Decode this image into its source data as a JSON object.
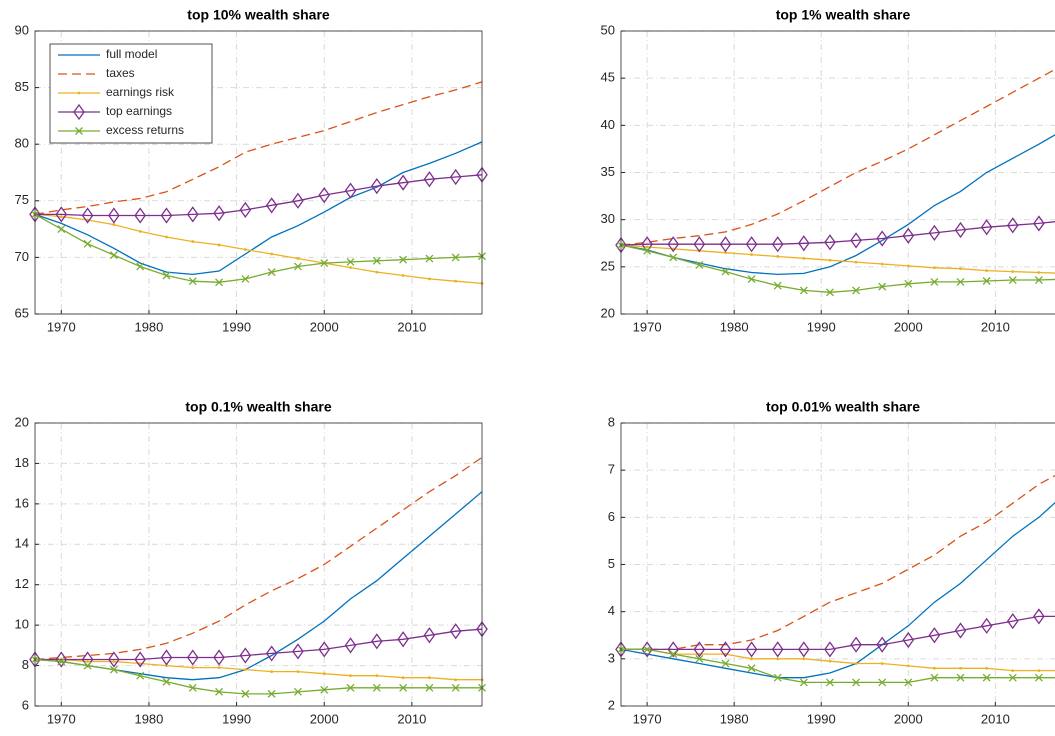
{
  "chart_data": [
    {
      "type": "line",
      "title": "top 10% wealth share",
      "xlim": [
        1967,
        2018
      ],
      "xticks": [
        1970,
        1980,
        1990,
        2000,
        2010
      ],
      "ylim": [
        65,
        90
      ],
      "yticks": [
        65,
        70,
        75,
        80,
        85,
        90
      ],
      "grid": true,
      "legend": "upper left",
      "x": [
        1967,
        1970,
        1973,
        1976,
        1979,
        1982,
        1985,
        1988,
        1991,
        1994,
        1997,
        2000,
        2003,
        2006,
        2009,
        2012,
        2015,
        2018
      ],
      "series": [
        {
          "name": "full model",
          "color": "#0072bd",
          "style": "solid",
          "marker": "none",
          "values": [
            73.8,
            73.0,
            72.0,
            70.8,
            69.5,
            68.7,
            68.5,
            68.8,
            70.3,
            71.8,
            72.8,
            74.0,
            75.3,
            76.2,
            77.5,
            78.3,
            79.2,
            80.2
          ]
        },
        {
          "name": "taxes",
          "color": "#d95319",
          "style": "dashed",
          "marker": "none",
          "values": [
            73.8,
            74.2,
            74.5,
            74.9,
            75.2,
            75.8,
            76.9,
            78.0,
            79.3,
            80.0,
            80.6,
            81.2,
            82.0,
            82.8,
            83.5,
            84.2,
            84.8,
            85.5
          ]
        },
        {
          "name": "earnings risk",
          "color": "#edb120",
          "style": "solid",
          "marker": "dot",
          "values": [
            73.8,
            73.6,
            73.3,
            72.9,
            72.3,
            71.8,
            71.4,
            71.1,
            70.7,
            70.3,
            69.9,
            69.5,
            69.1,
            68.7,
            68.4,
            68.1,
            67.9,
            67.7
          ]
        },
        {
          "name": "top earnings",
          "color": "#7e2f8e",
          "style": "solid",
          "marker": "diamond",
          "values": [
            73.8,
            73.8,
            73.7,
            73.7,
            73.7,
            73.7,
            73.8,
            73.9,
            74.2,
            74.6,
            75.0,
            75.5,
            75.9,
            76.3,
            76.6,
            76.9,
            77.1,
            77.3
          ]
        },
        {
          "name": "excess returns",
          "color": "#77ac30",
          "style": "solid",
          "marker": "x",
          "values": [
            73.8,
            72.5,
            71.2,
            70.2,
            69.2,
            68.4,
            67.9,
            67.8,
            68.1,
            68.7,
            69.2,
            69.5,
            69.6,
            69.7,
            69.8,
            69.9,
            70.0,
            70.1
          ]
        }
      ]
    },
    {
      "type": "line",
      "title": "top 1% wealth share",
      "xlim": [
        1967,
        2018
      ],
      "xticks": [
        1970,
        1980,
        1990,
        2000,
        2010
      ],
      "ylim": [
        20,
        50
      ],
      "yticks": [
        20,
        25,
        30,
        35,
        40,
        45,
        50
      ],
      "grid": true,
      "x": [
        1967,
        1970,
        1973,
        1976,
        1979,
        1982,
        1985,
        1988,
        1991,
        1994,
        1997,
        2000,
        2003,
        2006,
        2009,
        2012,
        2015,
        2018
      ],
      "series": [
        {
          "color": "#0072bd",
          "style": "solid",
          "marker": "none",
          "values": [
            27.3,
            26.8,
            26.0,
            25.4,
            24.8,
            24.4,
            24.2,
            24.3,
            25.0,
            26.2,
            27.8,
            29.5,
            31.5,
            33.0,
            35.0,
            36.5,
            38.0,
            39.6
          ]
        },
        {
          "color": "#d95319",
          "style": "dashed",
          "marker": "none",
          "values": [
            27.3,
            27.6,
            28.0,
            28.3,
            28.7,
            29.5,
            30.6,
            32.0,
            33.5,
            35.0,
            36.2,
            37.5,
            39.0,
            40.5,
            42.0,
            43.5,
            45.0,
            46.5
          ]
        },
        {
          "color": "#edb120",
          "style": "solid",
          "marker": "dot",
          "values": [
            27.3,
            27.1,
            26.9,
            26.7,
            26.5,
            26.3,
            26.1,
            25.9,
            25.7,
            25.5,
            25.3,
            25.1,
            24.9,
            24.8,
            24.6,
            24.5,
            24.4,
            24.3
          ]
        },
        {
          "color": "#7e2f8e",
          "style": "solid",
          "marker": "diamond",
          "values": [
            27.3,
            27.4,
            27.4,
            27.4,
            27.4,
            27.4,
            27.4,
            27.5,
            27.6,
            27.8,
            28.0,
            28.3,
            28.6,
            28.9,
            29.2,
            29.4,
            29.6,
            29.9
          ]
        },
        {
          "color": "#77ac30",
          "style": "solid",
          "marker": "x",
          "values": [
            27.3,
            26.7,
            26.0,
            25.2,
            24.5,
            23.7,
            23.0,
            22.5,
            22.3,
            22.5,
            22.9,
            23.2,
            23.4,
            23.4,
            23.5,
            23.6,
            23.6,
            23.7
          ]
        }
      ]
    },
    {
      "type": "line",
      "title": "top 0.1% wealth share",
      "xlim": [
        1967,
        2018
      ],
      "xticks": [
        1970,
        1980,
        1990,
        2000,
        2010
      ],
      "ylim": [
        6,
        20
      ],
      "yticks": [
        6,
        8,
        10,
        12,
        14,
        16,
        18,
        20
      ],
      "grid": true,
      "x": [
        1967,
        1970,
        1973,
        1976,
        1979,
        1982,
        1985,
        1988,
        1991,
        1994,
        1997,
        2000,
        2003,
        2006,
        2009,
        2012,
        2015,
        2018
      ],
      "series": [
        {
          "color": "#0072bd",
          "style": "solid",
          "marker": "none",
          "values": [
            8.3,
            8.2,
            8.0,
            7.8,
            7.6,
            7.4,
            7.3,
            7.4,
            7.8,
            8.5,
            9.3,
            10.2,
            11.3,
            12.2,
            13.3,
            14.4,
            15.5,
            16.6
          ]
        },
        {
          "color": "#d95319",
          "style": "dashed",
          "marker": "none",
          "values": [
            8.3,
            8.4,
            8.5,
            8.6,
            8.8,
            9.1,
            9.6,
            10.2,
            11.0,
            11.7,
            12.3,
            13.0,
            13.9,
            14.8,
            15.7,
            16.6,
            17.4,
            18.3
          ]
        },
        {
          "color": "#edb120",
          "style": "solid",
          "marker": "dot",
          "values": [
            8.3,
            8.3,
            8.2,
            8.2,
            8.1,
            8.0,
            7.9,
            7.9,
            7.8,
            7.7,
            7.7,
            7.6,
            7.5,
            7.5,
            7.4,
            7.4,
            7.3,
            7.3
          ]
        },
        {
          "color": "#7e2f8e",
          "style": "solid",
          "marker": "diamond",
          "values": [
            8.3,
            8.3,
            8.3,
            8.3,
            8.3,
            8.4,
            8.4,
            8.4,
            8.5,
            8.6,
            8.7,
            8.8,
            9.0,
            9.2,
            9.3,
            9.5,
            9.7,
            9.8
          ]
        },
        {
          "color": "#77ac30",
          "style": "solid",
          "marker": "x",
          "values": [
            8.3,
            8.2,
            8.0,
            7.8,
            7.5,
            7.2,
            6.9,
            6.7,
            6.6,
            6.6,
            6.7,
            6.8,
            6.9,
            6.9,
            6.9,
            6.9,
            6.9,
            6.9
          ]
        }
      ]
    },
    {
      "type": "line",
      "title": "top 0.01% wealth share",
      "xlim": [
        1967,
        2018
      ],
      "xticks": [
        1970,
        1980,
        1990,
        2000,
        2010
      ],
      "ylim": [
        2,
        8
      ],
      "yticks": [
        2,
        3,
        4,
        5,
        6,
        7,
        8
      ],
      "grid": true,
      "x": [
        1967,
        1970,
        1973,
        1976,
        1979,
        1982,
        1985,
        1988,
        1991,
        1994,
        1997,
        2000,
        2003,
        2006,
        2009,
        2012,
        2015,
        2018
      ],
      "series": [
        {
          "color": "#0072bd",
          "style": "solid",
          "marker": "none",
          "values": [
            3.2,
            3.1,
            3.0,
            2.9,
            2.8,
            2.7,
            2.6,
            2.6,
            2.7,
            2.9,
            3.3,
            3.7,
            4.2,
            4.6,
            5.1,
            5.6,
            6.0,
            6.5
          ]
        },
        {
          "color": "#d95319",
          "style": "dashed",
          "marker": "none",
          "values": [
            3.2,
            3.2,
            3.2,
            3.3,
            3.3,
            3.4,
            3.6,
            3.9,
            4.2,
            4.4,
            4.6,
            4.9,
            5.2,
            5.6,
            5.9,
            6.3,
            6.7,
            7.0
          ]
        },
        {
          "color": "#edb120",
          "style": "solid",
          "marker": "dot",
          "values": [
            3.2,
            3.2,
            3.1,
            3.1,
            3.1,
            3.0,
            3.0,
            3.0,
            2.95,
            2.9,
            2.9,
            2.85,
            2.8,
            2.8,
            2.8,
            2.75,
            2.75,
            2.75
          ]
        },
        {
          "color": "#7e2f8e",
          "style": "solid",
          "marker": "diamond",
          "values": [
            3.2,
            3.2,
            3.2,
            3.2,
            3.2,
            3.2,
            3.2,
            3.2,
            3.2,
            3.3,
            3.3,
            3.4,
            3.5,
            3.6,
            3.7,
            3.8,
            3.9,
            3.9
          ]
        },
        {
          "color": "#77ac30",
          "style": "solid",
          "marker": "x",
          "values": [
            3.2,
            3.2,
            3.1,
            3.0,
            2.9,
            2.8,
            2.6,
            2.5,
            2.5,
            2.5,
            2.5,
            2.5,
            2.6,
            2.6,
            2.6,
            2.6,
            2.6,
            2.6
          ]
        }
      ]
    }
  ]
}
